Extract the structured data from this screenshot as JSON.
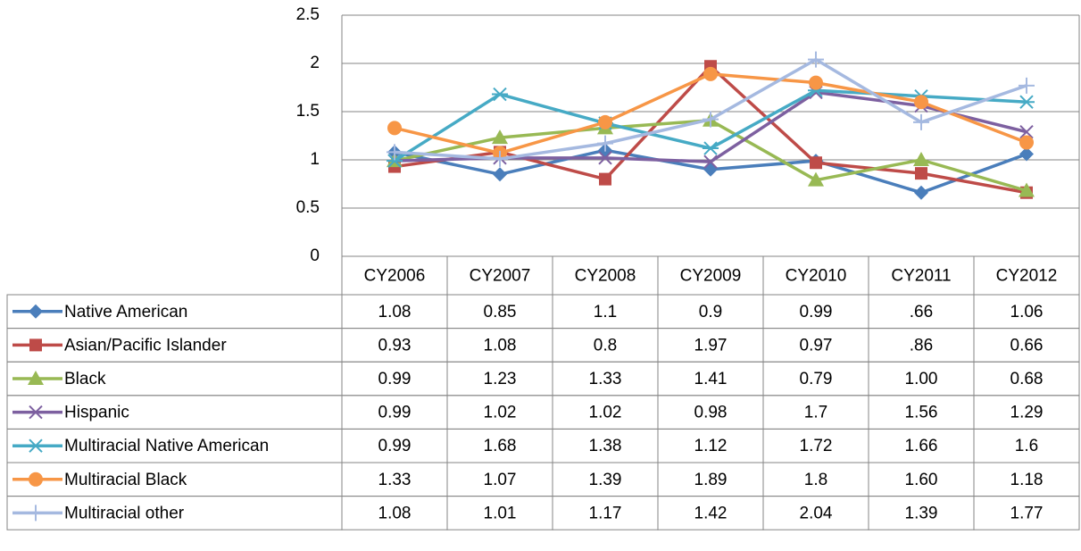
{
  "chart_data": {
    "type": "line",
    "categories": [
      "CY2006",
      "CY2007",
      "CY2008",
      "CY2009",
      "CY2010",
      "CY2011",
      "CY2012"
    ],
    "ylim": [
      0,
      2.5
    ],
    "yticks": [
      0,
      0.5,
      1,
      1.5,
      2,
      2.5
    ],
    "grid": true,
    "legend": "table",
    "series": [
      {
        "name": "Native American",
        "color": "#4a7ebb",
        "marker": "diamond",
        "values": [
          1.08,
          0.85,
          1.1,
          0.9,
          0.99,
          0.66,
          1.06
        ],
        "value_labels": [
          "1.08",
          "0.85",
          "1.1",
          "0.9",
          "0.99",
          ".66",
          "1.06"
        ]
      },
      {
        "name": "Asian/Pacific Islander",
        "color": "#be4b48",
        "marker": "square",
        "values": [
          0.93,
          1.08,
          0.8,
          1.97,
          0.97,
          0.86,
          0.66
        ],
        "value_labels": [
          "0.93",
          "1.08",
          "0.8",
          "1.97",
          "0.97",
          ".86",
          "0.66"
        ]
      },
      {
        "name": "Black",
        "color": "#98b954",
        "marker": "triangle",
        "values": [
          0.99,
          1.23,
          1.33,
          1.41,
          0.79,
          1.0,
          0.68
        ],
        "value_labels": [
          "0.99",
          "1.23",
          "1.33",
          "1.41",
          "0.79",
          "1.00",
          "0.68"
        ]
      },
      {
        "name": "Hispanic",
        "color": "#7d60a0",
        "marker": "x",
        "values": [
          0.99,
          1.02,
          1.02,
          0.98,
          1.7,
          1.56,
          1.29
        ],
        "value_labels": [
          "0.99",
          "1.02",
          "1.02",
          "0.98",
          "1.7",
          "1.56",
          "1.29"
        ]
      },
      {
        "name": "Multiracial Native American",
        "color": "#46aac5",
        "marker": "star",
        "values": [
          0.99,
          1.68,
          1.38,
          1.12,
          1.72,
          1.66,
          1.6
        ],
        "value_labels": [
          "0.99",
          "1.68",
          "1.38",
          "1.12",
          "1.72",
          "1.66",
          "1.6"
        ]
      },
      {
        "name": "Multiracial Black",
        "color": "#f79646",
        "marker": "circle",
        "values": [
          1.33,
          1.07,
          1.39,
          1.89,
          1.8,
          1.6,
          1.18
        ],
        "value_labels": [
          "1.33",
          "1.07",
          "1.39",
          "1.89",
          "1.8",
          "1.60",
          "1.18"
        ]
      },
      {
        "name": "Multiracial other",
        "color": "#a5b9e0",
        "marker": "plus",
        "values": [
          1.08,
          1.01,
          1.17,
          1.42,
          2.04,
          1.39,
          1.77
        ],
        "value_labels": [
          "1.08",
          "1.01",
          "1.17",
          "1.42",
          "2.04",
          "1.39",
          "1.77"
        ]
      }
    ]
  }
}
